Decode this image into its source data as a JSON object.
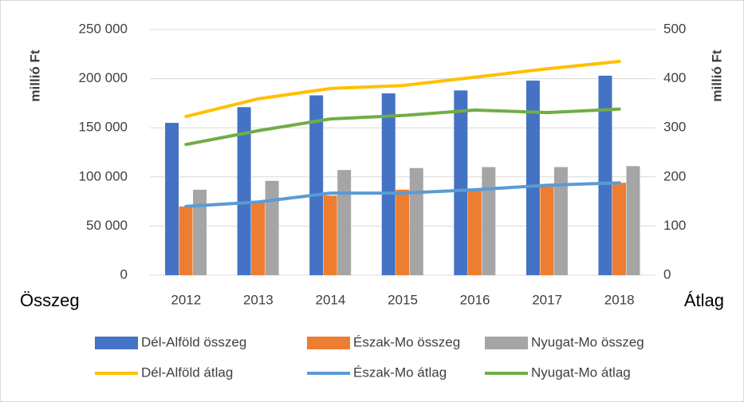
{
  "chart_data": {
    "type": "bar_line",
    "ylabel": "millió Ft",
    "y2label": "millió Ft",
    "left_caption": "Összeg",
    "right_caption": "Átlag",
    "categories": [
      "2012",
      "2013",
      "2014",
      "2015",
      "2016",
      "2017",
      "2018"
    ],
    "ylim": [
      0,
      250000
    ],
    "yticks": [
      0,
      {
        "value": 50000,
        "label": "50 000"
      },
      {
        "value": 100000,
        "label": "100 000"
      },
      {
        "value": 150000,
        "label": "150 000"
      },
      {
        "value": 200000,
        "label": "200 000"
      },
      {
        "value": 250000,
        "label": "250 000"
      }
    ],
    "y2lim": [
      0,
      500
    ],
    "y2ticks": [
      0,
      100,
      200,
      300,
      400,
      500
    ],
    "grid": true,
    "legend": "bottom",
    "series": [
      {
        "name": "Dél-Alföld összeg",
        "type": "bar",
        "color": "#4472c4",
        "values": [
          155000,
          171000,
          183000,
          185000,
          188000,
          198000,
          203000
        ]
      },
      {
        "name": "Észak-Mo összeg",
        "type": "bar",
        "color": "#ed7d31",
        "values": [
          70000,
          75000,
          81000,
          87000,
          88000,
          91000,
          94000
        ]
      },
      {
        "name": "Nyugat-Mo összeg",
        "type": "bar",
        "color": "#a5a5a5",
        "values": [
          87000,
          96000,
          107000,
          109000,
          110000,
          110000,
          111000
        ]
      },
      {
        "name": "Dél-Alföld átlag",
        "type": "line",
        "axis": "y2",
        "color": "#ffc000",
        "values": [
          323,
          359,
          380,
          386,
          403,
          420,
          435
        ]
      },
      {
        "name": "Észak-Mo átlag",
        "type": "line",
        "axis": "y2",
        "color": "#5b9bd5",
        "values": [
          140,
          149,
          167,
          167,
          174,
          183,
          188
        ]
      },
      {
        "name": "Nyugat-Mo átlag",
        "type": "line",
        "axis": "y2",
        "color": "#70ad47",
        "values": [
          266,
          294,
          318,
          325,
          336,
          331,
          338
        ]
      }
    ]
  }
}
